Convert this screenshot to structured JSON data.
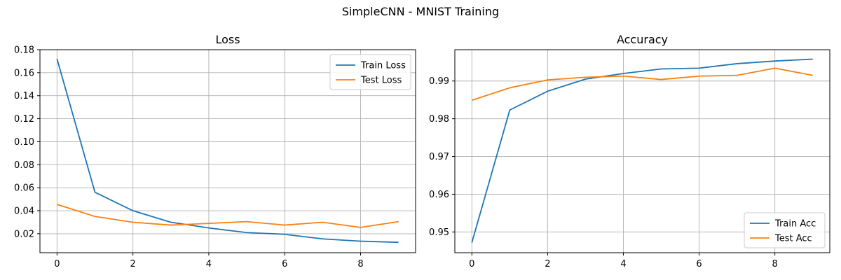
{
  "figure": {
    "suptitle": "SimpleCNN - MNIST Training"
  },
  "chart_data": [
    {
      "type": "line",
      "title": "Loss",
      "xlabel": "",
      "ylabel": "",
      "x": [
        0,
        1,
        2,
        3,
        4,
        5,
        6,
        7,
        8,
        9
      ],
      "xlim": [
        -0.45,
        9.45
      ],
      "ylim": [
        0.0035,
        0.18
      ],
      "xticks": [
        0,
        2,
        4,
        6,
        8
      ],
      "xtick_labels": [
        "0",
        "2",
        "4",
        "6",
        "8"
      ],
      "yticks": [
        0.02,
        0.04,
        0.06,
        0.08,
        0.1,
        0.12,
        0.14,
        0.16,
        0.18
      ],
      "ytick_labels": [
        "0.02",
        "0.04",
        "0.06",
        "0.08",
        "0.10",
        "0.12",
        "0.14",
        "0.16",
        "0.18"
      ],
      "grid": true,
      "legend_position": "top-right",
      "series": [
        {
          "name": "Train Loss",
          "color": "#1f77b4",
          "values": [
            0.172,
            0.056,
            0.04,
            0.03,
            0.025,
            0.021,
            0.0195,
            0.0155,
            0.0135,
            0.0125
          ]
        },
        {
          "name": "Test Loss",
          "color": "#ff7f0e",
          "values": [
            0.0455,
            0.035,
            0.03,
            0.0275,
            0.029,
            0.0305,
            0.0275,
            0.03,
            0.0255,
            0.0305
          ]
        }
      ]
    },
    {
      "type": "line",
      "title": "Accuracy",
      "xlabel": "",
      "ylabel": "",
      "x": [
        0,
        1,
        2,
        3,
        4,
        5,
        6,
        7,
        8,
        9
      ],
      "xlim": [
        -0.45,
        9.45
      ],
      "ylim": [
        0.9445,
        0.9983
      ],
      "xticks": [
        0,
        2,
        4,
        6,
        8
      ],
      "xtick_labels": [
        "0",
        "2",
        "4",
        "6",
        "8"
      ],
      "yticks": [
        0.95,
        0.96,
        0.97,
        0.98,
        0.99
      ],
      "ytick_labels": [
        "0.95",
        "0.96",
        "0.97",
        "0.98",
        "0.99"
      ],
      "grid": true,
      "legend_position": "bottom-right",
      "series": [
        {
          "name": "Train Acc",
          "color": "#1f77b4",
          "values": [
            0.9472,
            0.9823,
            0.9873,
            0.9905,
            0.992,
            0.9932,
            0.9934,
            0.9946,
            0.9953,
            0.9958
          ]
        },
        {
          "name": "Test Acc",
          "color": "#ff7f0e",
          "values": [
            0.9849,
            0.9882,
            0.9903,
            0.991,
            0.9913,
            0.9904,
            0.9913,
            0.9915,
            0.9934,
            0.9915
          ]
        }
      ]
    }
  ]
}
